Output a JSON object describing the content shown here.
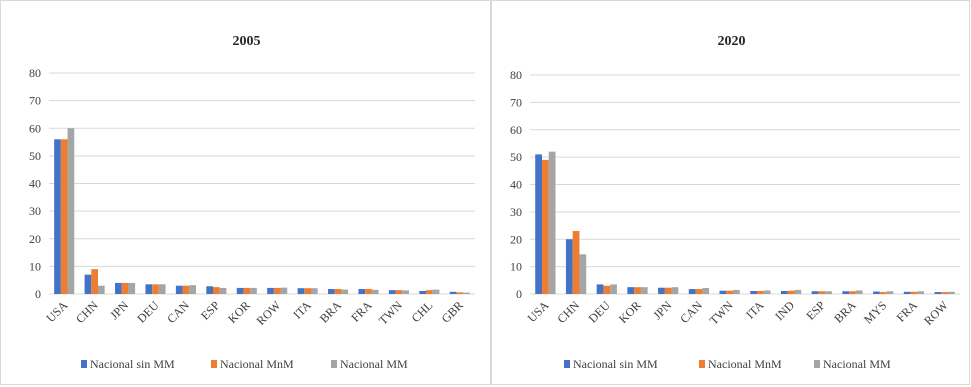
{
  "colors": {
    "Nacional sin MM": "#4472c4",
    "Nacional MnM": "#ed7d31",
    "Nacional MM": "#a5a5a5"
  },
  "chart_data": [
    {
      "type": "bar",
      "title": "2005",
      "categories": [
        "USA",
        "CHN",
        "JPN",
        "DEU",
        "CAN",
        "ESP",
        "KOR",
        "ROW",
        "ITA",
        "BRA",
        "FRA",
        "TWN",
        "CHL",
        "GBR"
      ],
      "ylim": [
        0,
        80
      ],
      "yticks": [
        0,
        10,
        20,
        30,
        40,
        50,
        60,
        70,
        80
      ],
      "grid": true,
      "legend_position": "bottom",
      "series": [
        {
          "name": "Nacional sin MM",
          "values": [
            56,
            7,
            4,
            3.5,
            3,
            2.8,
            2.2,
            2.2,
            2.1,
            1.8,
            1.8,
            1.4,
            1.1,
            0.8
          ]
        },
        {
          "name": "Nacional MnM",
          "values": [
            56,
            9,
            4,
            3.5,
            3,
            2.5,
            2.2,
            2.2,
            2.1,
            1.8,
            1.8,
            1.4,
            1.4,
            0.6
          ]
        },
        {
          "name": "Nacional MM",
          "values": [
            60,
            3,
            4,
            3.5,
            3.2,
            2.2,
            2.2,
            2.3,
            2.1,
            1.6,
            1.5,
            1.3,
            1.6,
            0.5
          ]
        }
      ]
    },
    {
      "type": "bar",
      "title": "2020",
      "categories": [
        "USA",
        "CHN",
        "DEU",
        "KOR",
        "JPN",
        "CAN",
        "TWN",
        "ITA",
        "IND",
        "ESP",
        "BRA",
        "MYS",
        "FRA",
        "ROW"
      ],
      "ylim": [
        0,
        80
      ],
      "yticks": [
        0,
        10,
        20,
        30,
        40,
        50,
        60,
        70,
        80
      ],
      "grid": true,
      "legend_position": "bottom",
      "series": [
        {
          "name": "Nacional sin MM",
          "values": [
            51,
            20,
            3.5,
            2.5,
            2.3,
            1.8,
            1.2,
            1.1,
            1.1,
            1.0,
            1.0,
            0.9,
            0.8,
            0.7
          ]
        },
        {
          "name": "Nacional MnM",
          "values": [
            49,
            23,
            3.0,
            2.5,
            2.3,
            1.8,
            1.2,
            1.1,
            1.2,
            1.0,
            1.0,
            0.7,
            0.8,
            0.7
          ]
        },
        {
          "name": "Nacional MM",
          "values": [
            52,
            14.5,
            3.5,
            2.5,
            2.5,
            2.2,
            1.5,
            1.3,
            1.5,
            1.0,
            1.3,
            1.0,
            1.0,
            0.8
          ]
        }
      ]
    }
  ]
}
